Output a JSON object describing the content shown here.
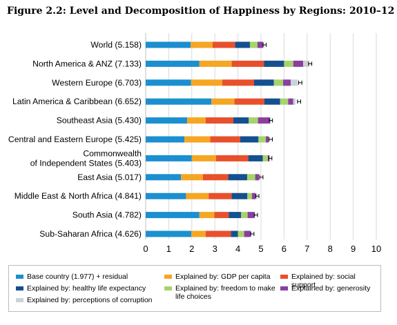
{
  "title": "Figure 2.2: Level and Decomposition of Happiness by Regions: 2010–12",
  "chart_data": {
    "type": "bar",
    "orientation": "horizontal",
    "stacked": true,
    "title": "Figure 2.2: Level and Decomposition of Happiness by Regions: 2010–12",
    "xlim": [
      0,
      10
    ],
    "xticks": [
      "0",
      "1",
      "2",
      "3",
      "4",
      "5",
      "6",
      "7",
      "8",
      "9",
      "10"
    ],
    "grid": "vertical",
    "legend_position": "bottom",
    "categories": [
      [
        "World (5.158)"
      ],
      [
        "North America & ANZ (7.133)"
      ],
      [
        "Western Europe (6.703)"
      ],
      [
        "Latin America & Caribbean (6.652)"
      ],
      [
        "Southeast Asia (5.430)"
      ],
      [
        "Central and Eastern Europe (5.425)"
      ],
      [
        "Commonwealth",
        "of Independent States (5.403)"
      ],
      [
        "East Asia (5.017)"
      ],
      [
        "Middle East & North Africa (4.841)"
      ],
      [
        "South Asia (4.782)"
      ],
      [
        "Sub-Saharan Africa (4.626)"
      ]
    ],
    "series": [
      {
        "name": "Base country (1.977) + residual",
        "color": "#1b8fd0",
        "values": [
          1.95,
          2.33,
          1.97,
          2.85,
          1.8,
          1.68,
          2.0,
          1.53,
          1.75,
          2.33,
          1.98
        ]
      },
      {
        "name": "Explained by: GDP per capita",
        "color": "#f5a623",
        "values": [
          0.95,
          1.4,
          1.35,
          1.0,
          0.8,
          1.12,
          1.05,
          0.95,
          0.98,
          0.65,
          0.62
        ]
      },
      {
        "name": "Explained by: social support",
        "color": "#e8502c",
        "values": [
          0.98,
          1.4,
          1.38,
          1.3,
          1.2,
          1.3,
          1.4,
          1.1,
          1.0,
          0.62,
          1.1
        ]
      },
      {
        "name": "Explained by: healthy life expectancy",
        "color": "#14508f",
        "values": [
          0.64,
          0.87,
          0.86,
          0.68,
          0.67,
          0.79,
          0.63,
          0.82,
          0.68,
          0.54,
          0.3
        ]
      },
      {
        "name": "Explained by: freedom to make life choices",
        "color": "#a6d46a",
        "values": [
          0.33,
          0.4,
          0.4,
          0.35,
          0.4,
          0.32,
          0.22,
          0.35,
          0.2,
          0.28,
          0.27
        ]
      },
      {
        "name": "Explained by: generosity",
        "color": "#8a3fa0",
        "values": [
          0.24,
          0.43,
          0.33,
          0.22,
          0.52,
          0.12,
          0.07,
          0.16,
          0.16,
          0.3,
          0.28
        ]
      },
      {
        "name": "Explained by: perceptions of corruption",
        "color": "#c9d3d8",
        "values": [
          0.05,
          0.26,
          0.31,
          0.1,
          0.04,
          0.02,
          0.01,
          0.04,
          0.07,
          0.03,
          0.03
        ]
      }
    ],
    "error_bar_centers": [
      5.158,
      7.133,
      6.703,
      6.652,
      5.43,
      5.425,
      5.403,
      5.017,
      4.841,
      4.782,
      4.626
    ],
    "error_bar_halfwidth": 0.07
  },
  "legend": {
    "items": [
      "Base country (1.977) + residual",
      "Explained by: GDP per capita",
      "Explained by: social support",
      "Explained by: healthy life expectancy",
      [
        "Explained by: freedom to make",
        "life choices"
      ],
      "Explained by: generosity",
      "Explained by: perceptions of corruption"
    ]
  }
}
